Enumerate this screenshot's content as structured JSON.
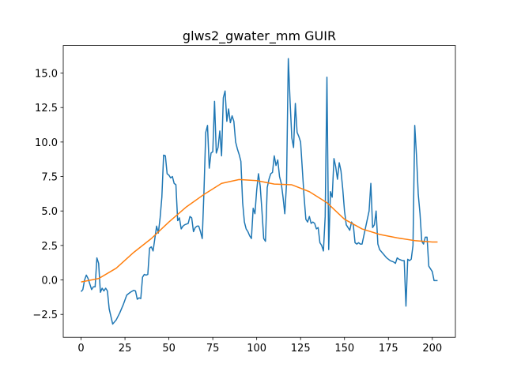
{
  "chart_data": {
    "type": "line",
    "title": "glws2_gwater_mm GUIR",
    "xlim": [
      -10.15,
      213.15
    ],
    "ylim": [
      -4.16,
      17.0
    ],
    "xticks": [
      0,
      25,
      50,
      75,
      100,
      125,
      150,
      175,
      200
    ],
    "yticks": [
      {
        "value": -2.5,
        "label": "−2.5"
      },
      {
        "value": 0,
        "label": "0.0"
      },
      2.5,
      {
        "value": 5,
        "label": "5.0"
      },
      7.5,
      {
        "value": 10,
        "label": "10.0"
      },
      12.5,
      {
        "value": 15,
        "label": "15.0"
      }
    ],
    "series": [
      {
        "color": "#1f77b4",
        "x": [
          0,
          1,
          2,
          3,
          4,
          5,
          6,
          7,
          8,
          9,
          10,
          11,
          12,
          13,
          14,
          15,
          16,
          18,
          20,
          22,
          24,
          26,
          28,
          30,
          31,
          32,
          33,
          34,
          35,
          36,
          37,
          38,
          39,
          40,
          41,
          42,
          43,
          44,
          45,
          46,
          47,
          48,
          49,
          50,
          51,
          52,
          53,
          54,
          55,
          56,
          57,
          58,
          59,
          61,
          62,
          63,
          64,
          65,
          66,
          67,
          68,
          69,
          70,
          71,
          72,
          73,
          74,
          75,
          76,
          77,
          78,
          79,
          80,
          81,
          82,
          83,
          84,
          85,
          86,
          87,
          88,
          89,
          90,
          91,
          92,
          93,
          94,
          95,
          96,
          97,
          98,
          99,
          100,
          101,
          102,
          103,
          104,
          105,
          106,
          107,
          108,
          109,
          110,
          111,
          112,
          113,
          114,
          115,
          116,
          117,
          118,
          119,
          120,
          121,
          122,
          123,
          124,
          125,
          126,
          127,
          128,
          129,
          130,
          131,
          132,
          133,
          134,
          135,
          136,
          137,
          138,
          139,
          140,
          141,
          142,
          143,
          144,
          145,
          146,
          147,
          148,
          149,
          150,
          151,
          152,
          153,
          154,
          155,
          156,
          157,
          158,
          159,
          160,
          162,
          164,
          165,
          166,
          167,
          168,
          169,
          170,
          172,
          174,
          176,
          178,
          179,
          180,
          181,
          183,
          184,
          185,
          186,
          187,
          188,
          189,
          190,
          191,
          192,
          193,
          194,
          195,
          196,
          197,
          198,
          199,
          200,
          201,
          203
        ],
        "values": [
          -0.85,
          -0.7,
          0,
          0.35,
          0.1,
          -0.3,
          -0.7,
          -0.5,
          -0.5,
          1.6,
          1.2,
          -0.9,
          -0.6,
          -0.8,
          -0.6,
          -0.8,
          -2.1,
          -3.2,
          -2.9,
          -2.4,
          -1.8,
          -1.1,
          -0.9,
          -0.75,
          -0.8,
          -1.4,
          -1.3,
          -1.35,
          0.2,
          0.4,
          0.35,
          0.4,
          2.3,
          2.4,
          2.1,
          3.0,
          3.9,
          3.4,
          4.5,
          6.0,
          9.05,
          9.0,
          7.7,
          7.6,
          7.4,
          7.5,
          7.0,
          6.9,
          4.3,
          4.5,
          3.7,
          3.9,
          4.0,
          4.1,
          4.6,
          4.5,
          3.5,
          3.8,
          3.9,
          3.9,
          3.5,
          3.0,
          6.5,
          10.7,
          11.2,
          8.1,
          9.2,
          9.3,
          12.95,
          9.2,
          9.6,
          10.8,
          9.0,
          13.2,
          13.7,
          11.5,
          12.4,
          11.4,
          11.9,
          11.5,
          10.0,
          9.5,
          9.1,
          8.6,
          5.6,
          4.2,
          3.7,
          3.5,
          3.2,
          3.0,
          5.2,
          4.8,
          6.5,
          7.7,
          6.8,
          5.0,
          3.0,
          2.8,
          6.7,
          7.3,
          7.7,
          7.8,
          9.0,
          8.3,
          8.7,
          7.5,
          7.0,
          6.0,
          4.8,
          7.0,
          16.05,
          13.0,
          10.3,
          9.6,
          12.8,
          10.7,
          10.4,
          10.0,
          8.0,
          6.0,
          4.4,
          4.2,
          4.6,
          4.1,
          4.2,
          4.1,
          3.7,
          3.8,
          2.7,
          2.5,
          2.1,
          4.6,
          14.7,
          2.2,
          6.4,
          6.0,
          8.8,
          8.2,
          7.3,
          8.5,
          7.9,
          6.6,
          5.0,
          4.0,
          3.8,
          3.6,
          4.2,
          4.0,
          2.7,
          2.6,
          2.7,
          2.6,
          2.6,
          3.8,
          5.0,
          7.0,
          3.8,
          4.0,
          5.0,
          2.6,
          2.2,
          1.9,
          1.6,
          1.4,
          1.3,
          1.2,
          1.6,
          1.5,
          1.4,
          1.4,
          -1.9,
          1.5,
          1.4,
          1.5,
          2.5,
          11.2,
          9.0,
          6.2,
          4.8,
          2.8,
          2.6,
          3.1,
          3.1,
          1.0,
          0.8,
          0.6,
          -0.05,
          -0.05
        ]
      },
      {
        "color": "#ff7f0e",
        "x": [
          0,
          10,
          20,
          30,
          40,
          50,
          60,
          70,
          80,
          90,
          100,
          110,
          120,
          130,
          140,
          150,
          160,
          170,
          180,
          190,
          200,
          203
        ],
        "values": [
          -0.15,
          0.1,
          0.85,
          2.0,
          3.0,
          4.2,
          5.3,
          6.2,
          7.0,
          7.28,
          7.2,
          6.95,
          6.9,
          6.4,
          5.6,
          4.4,
          3.7,
          3.3,
          3.05,
          2.85,
          2.75,
          2.75
        ]
      }
    ]
  }
}
